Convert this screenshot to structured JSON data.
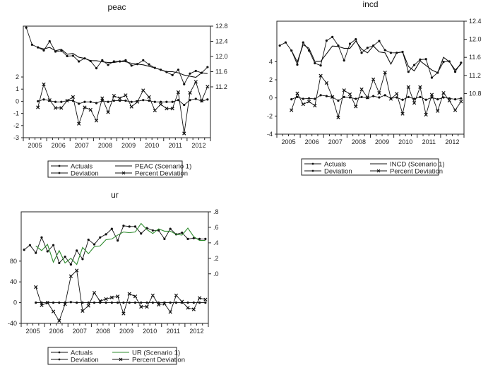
{
  "chart_data": [
    {
      "type": "line",
      "title": "peac",
      "x_labels": [
        "2005",
        "2006",
        "2007",
        "2008",
        "2009",
        "2010",
        "2011",
        "2012"
      ],
      "frequency": "quarterly 2005Q1-2012Q4",
      "left_axis": {
        "range": [
          -3,
          6.19
        ],
        "ticks": [
          -3,
          -2,
          -1,
          0,
          1,
          2
        ],
        "tick_labels": [
          "-3",
          "-2",
          "-1",
          "0",
          "1",
          "2"
        ]
      },
      "right_axis": {
        "range": [
          9.86,
          12.8
        ],
        "ticks": [
          11.2,
          11.6,
          12.0,
          12.4,
          12.8
        ],
        "tick_labels": [
          "11.2",
          "11.6",
          "12.0",
          "12.4",
          "12.8"
        ]
      },
      "series": [
        {
          "name": "Actuals",
          "axis": "right",
          "start": 0,
          "marker": "dot",
          "color": "#111111",
          "values": [
            12.76,
            12.31,
            12.24,
            12.16,
            12.4,
            12.13,
            12.15,
            12.01,
            12.02,
            11.87,
            11.95,
            11.88,
            11.69,
            11.9,
            11.78,
            11.87,
            11.87,
            11.9,
            11.76,
            11.8,
            11.9,
            11.79,
            11.7,
            11.65,
            11.59,
            11.51,
            11.65,
            11.27,
            11.55,
            11.62,
            11.57,
            11.72
          ]
        },
        {
          "name": "PEAC (Scenario 1)",
          "axis": "right",
          "start": 2,
          "marker": "none",
          "color": "#111111",
          "values": [
            12.24,
            12.2,
            12.24,
            12.15,
            12.19,
            12.06,
            12.08,
            11.98,
            11.95,
            11.89,
            11.89,
            11.86,
            11.84,
            11.84,
            11.87,
            11.86,
            11.82,
            11.8,
            11.78,
            11.74,
            11.7,
            11.65,
            11.6,
            11.6,
            11.57,
            11.51,
            11.48,
            11.45,
            11.57,
            11.55
          ]
        },
        {
          "name": "Deviation",
          "axis": "left",
          "start": 2,
          "marker": "dot",
          "color": "#111111",
          "values": [
            0,
            0.15,
            0.05,
            -0.05,
            -0.05,
            0.05,
            0.05,
            -0.2,
            -0.05,
            -0.05,
            -0.15,
            0.05,
            -0.05,
            0.05,
            0.05,
            0.05,
            -0.05,
            0,
            0.1,
            0.05,
            -0.05,
            -0.05,
            -0.05,
            -0.05,
            0.1,
            -0.3,
            0.1,
            0.2,
            0,
            0.15
          ]
        },
        {
          "name": "Percent Deviation",
          "axis": "left",
          "start": 2,
          "marker": "x",
          "color": "#111111",
          "values": [
            -0.5,
            1.4,
            0.1,
            -0.55,
            -0.55,
            0.05,
            0.35,
            -1.85,
            -0.5,
            -0.7,
            -1.6,
            0.25,
            -0.9,
            0.45,
            0.25,
            0.5,
            -0.45,
            -0.05,
            0.9,
            0.35,
            -0.75,
            -0.25,
            -0.6,
            -0.6,
            0.75,
            -2.65,
            0.7,
            1.6,
            0.05,
            1.2
          ]
        }
      ],
      "legend": [
        "Actuals",
        "PEAC (Scenario 1)",
        "Deviation",
        "Percent Deviation"
      ]
    },
    {
      "type": "line",
      "title": "incd",
      "x_labels": [
        "2005",
        "2006",
        "2007",
        "2008",
        "2009",
        "2010",
        "2011",
        "2012"
      ],
      "frequency": "quarterly 2005Q1-2012Q4",
      "left_axis": {
        "range": [
          -4,
          8.47
        ],
        "ticks": [
          -4,
          -2,
          0,
          2,
          4
        ],
        "tick_labels": [
          "-4",
          "-2",
          "0",
          "2",
          "4"
        ]
      },
      "right_axis": {
        "range": [
          9.9,
          12.4
        ],
        "ticks": [
          10.8,
          11.2,
          11.6,
          12.0,
          12.4
        ],
        "tick_labels": [
          "10.8",
          "11.2",
          "11.6",
          "12.0",
          "12.4"
        ]
      },
      "series": [
        {
          "name": "Actuals",
          "axis": "right",
          "start": 0,
          "marker": "dot",
          "color": "#111111",
          "values": [
            11.86,
            11.93,
            11.75,
            11.44,
            11.93,
            11.75,
            11.47,
            11.42,
            11.97,
            12.05,
            11.86,
            11.53,
            11.9,
            12.0,
            11.7,
            11.81,
            11.86,
            11.96,
            11.76,
            11.7,
            11.7,
            11.72,
            11.28,
            11.43,
            11.55,
            11.56,
            11.15,
            11.26,
            11.5,
            11.51,
            11.28,
            11.48
          ]
        },
        {
          "name": "INCD (Scenario 1)",
          "axis": "right",
          "start": 2,
          "marker": "none",
          "color": "#111111",
          "values": [
            11.75,
            11.5,
            11.88,
            11.8,
            11.51,
            11.51,
            11.68,
            11.85,
            11.84,
            11.8,
            11.8,
            11.96,
            11.78,
            11.7,
            11.85,
            11.72,
            11.7,
            11.45,
            11.7,
            11.72,
            11.4,
            11.3,
            11.52,
            11.42,
            11.32,
            11.26,
            11.6,
            11.5,
            11.32,
            11.45
          ]
        },
        {
          "name": "Deviation",
          "axis": "left",
          "start": 2,
          "marker": "dot",
          "color": "#111111",
          "values": [
            -0.15,
            0.1,
            -0.1,
            -0.05,
            -0.1,
            0.3,
            0.2,
            0.1,
            -0.3,
            0.1,
            0.05,
            -0.1,
            0.1,
            0,
            0.2,
            0.05,
            0.3,
            -0.05,
            0.05,
            -0.2,
            0.1,
            -0.1,
            0.1,
            -0.2,
            0.05,
            -0.15,
            0.05,
            -0.05,
            -0.15,
            -0.05
          ]
        },
        {
          "name": "Percent Deviation",
          "axis": "left",
          "start": 2,
          "marker": "x",
          "color": "#111111",
          "values": [
            -1.35,
            0.5,
            -0.7,
            -0.4,
            -0.85,
            2.45,
            1.65,
            0.1,
            -2.15,
            0.85,
            0.4,
            -0.95,
            0.95,
            0.05,
            2.05,
            0.55,
            2.8,
            -0.1,
            0.45,
            -1.75,
            1.2,
            -0.55,
            1.2,
            -1.85,
            0.35,
            -1.45,
            0.55,
            -0.3,
            -1.35,
            -0.4
          ]
        }
      ],
      "legend": [
        "Actuals",
        "INCD (Scenario 1)",
        "Deviation",
        "Percent Deviation"
      ]
    },
    {
      "type": "line",
      "title": "ur",
      "x_labels": [
        "2005",
        "2006",
        "2007",
        "2008",
        "2009",
        "2010",
        "2011",
        "2012"
      ],
      "frequency": "quarterly 2005Q1-2012Q4",
      "left_axis": {
        "range": [
          -40,
          175
        ],
        "ticks": [
          -40,
          0,
          40,
          80
        ],
        "tick_labels": [
          "-40",
          "0",
          "40",
          "80"
        ]
      },
      "right_axis": {
        "range": [
          -0.64,
          0.8
        ],
        "ticks": [
          0,
          0.2,
          0.4,
          0.6,
          0.8
        ],
        "tick_labels": [
          ".0",
          ".2",
          ".4",
          ".6",
          ".8"
        ]
      },
      "series": [
        {
          "name": "Actuals",
          "axis": "right",
          "start": 0,
          "marker": "dot",
          "color": "#111111",
          "values": [
            0.31,
            0.37,
            0.27,
            0.47,
            0.29,
            0.37,
            0.14,
            0.22,
            0.12,
            0.3,
            0.19,
            0.44,
            0.38,
            0.47,
            0.51,
            0.58,
            0.43,
            0.62,
            0.61,
            0.61,
            0.52,
            0.59,
            0.56,
            0.56,
            0.45,
            0.58,
            0.51,
            0.53,
            0.45,
            0.46,
            0.45,
            0.45
          ]
        },
        {
          "name": "UR (Scenario 1)",
          "axis": "right",
          "start": 2,
          "marker": "none",
          "color": "#2e8b2e",
          "values": [
            0.36,
            0.3,
            0.38,
            0.15,
            0.3,
            0.14,
            0.2,
            0.12,
            0.34,
            0.26,
            0.35,
            0.36,
            0.44,
            0.45,
            0.5,
            0.54,
            0.53,
            0.54,
            0.65,
            0.57,
            0.52,
            0.58,
            0.55,
            0.55,
            0.51,
            0.5,
            0.59,
            0.48,
            0.43,
            0.43
          ]
        },
        {
          "name": "Deviation",
          "axis": "left",
          "start": 2,
          "marker": "dot",
          "color": "#111111",
          "values": [
            0,
            0,
            0,
            0,
            0,
            0,
            1,
            0,
            0,
            0,
            0,
            0,
            0,
            0,
            0,
            0,
            0,
            0,
            0,
            0,
            0,
            0,
            0,
            0,
            0,
            0,
            0,
            0,
            0,
            0
          ]
        },
        {
          "name": "Percent Deviation",
          "axis": "left",
          "start": 2,
          "marker": "x",
          "color": "#111111",
          "values": [
            30,
            -5,
            0,
            -17,
            -35,
            -3,
            51,
            62,
            -16,
            -6,
            19,
            3,
            7,
            10,
            12,
            -21,
            17,
            12,
            -8,
            -8,
            14,
            -4,
            -2,
            -18,
            14,
            2,
            -10,
            -13,
            9,
            6
          ]
        }
      ],
      "legend": [
        "Actuals",
        "UR (Scenario 1)",
        "Deviation",
        "Percent Deviation"
      ]
    }
  ]
}
